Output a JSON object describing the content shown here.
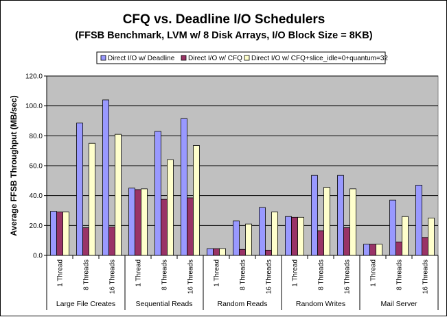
{
  "chart_data": {
    "type": "bar",
    "title": "CFQ vs. Deadline I/O Schedulers",
    "subtitle": "(FFSB Benchmark, LVM w/ 8 Disk Arrays, I/O Block Size = 8KB)",
    "ylabel": "Average FFSB Throughput (MB/sec)",
    "xlabel": "",
    "ylim": [
      0,
      120
    ],
    "yticks": [
      "0.0",
      "20.0",
      "40.0",
      "60.0",
      "80.0",
      "100.0",
      "120.0"
    ],
    "grid": true,
    "legend_position": "top",
    "groups": [
      "Large File Creates",
      "Sequential Reads",
      "Random Reads",
      "Random Writes",
      "Mail Server"
    ],
    "subcategories": [
      "1 Thread",
      "8 Threads",
      "16 Threads"
    ],
    "series": [
      {
        "name": "Direct I/O w/ Deadline",
        "color": "#9999ff",
        "values": [
          29.5,
          88.5,
          104,
          45,
          83,
          91.5,
          4.5,
          23,
          32,
          26,
          53.5,
          53.5,
          7.5,
          37,
          47
        ]
      },
      {
        "name": "Direct I/O w/ CFQ",
        "color": "#993366",
        "values": [
          29,
          18.5,
          19,
          44,
          37.5,
          38.5,
          4.5,
          4,
          3.5,
          25.5,
          16.5,
          18.5,
          7.5,
          9,
          12
        ]
      },
      {
        "name": "Direct I/O w/ CFQ+slice_idle=0+quantum=32",
        "color": "#ffffcc",
        "values": [
          29,
          75,
          81,
          44.5,
          64,
          73.5,
          4.5,
          21,
          29,
          25.5,
          45.5,
          44.5,
          7.5,
          26,
          25
        ]
      }
    ],
    "plot_background": "#c0c0c0"
  }
}
